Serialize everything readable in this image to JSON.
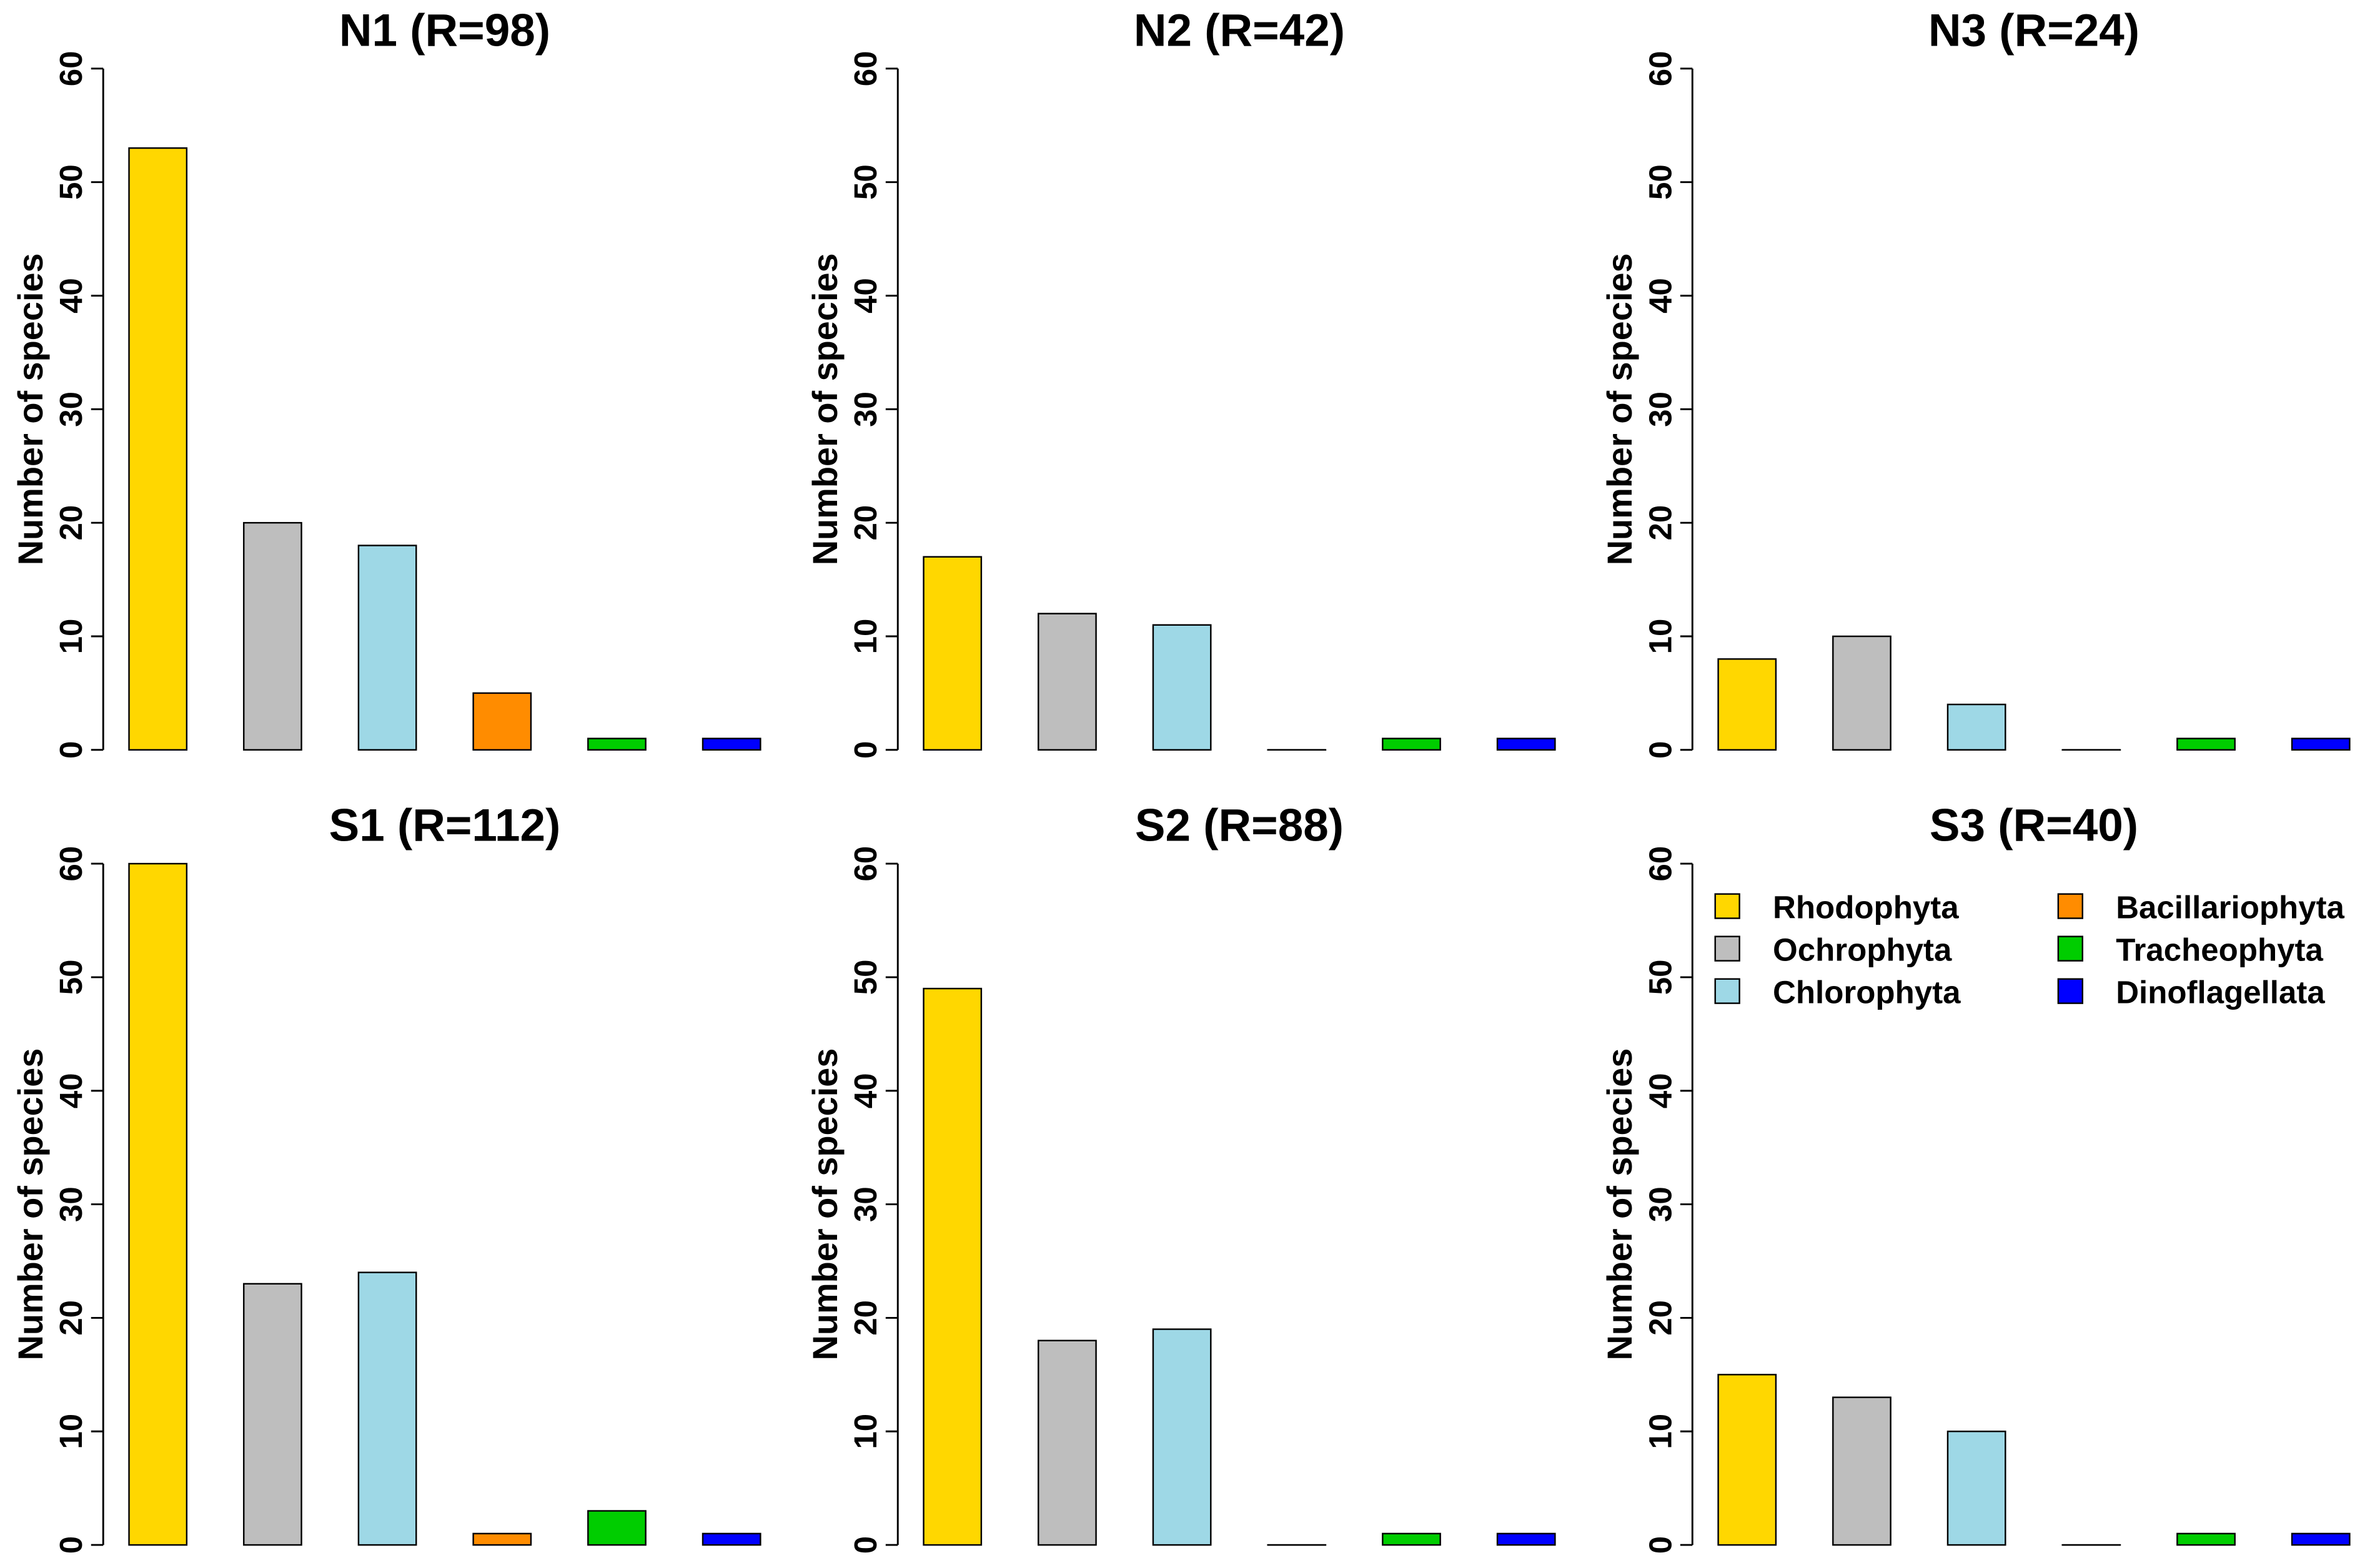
{
  "chart_data": {
    "type": "bar",
    "ylabel": "Number of species",
    "xlabel": "",
    "ylim": [
      0,
      60
    ],
    "yticks": [
      0,
      10,
      20,
      30,
      40,
      50,
      60
    ],
    "categories": [
      "Rhodophyta",
      "Ochrophyta",
      "Chlorophyta",
      "Bacillariophyta",
      "Tracheophyta",
      "Dinoflagellata"
    ],
    "colors": [
      "#FFD700",
      "#BEBEBE",
      "#9ED8E6",
      "#FF8C00",
      "#00CD00",
      "#0000FF"
    ],
    "legend": {
      "placement": "top-right of panel S3",
      "entries": [
        "Rhodophyta",
        "Ochrophyta",
        "Chlorophyta",
        "Bacillariophyta",
        "Tracheophyta",
        "Dinoflagellata"
      ]
    },
    "panels": [
      {
        "title": "N1 (R=98)",
        "values": [
          53,
          20,
          18,
          5,
          1,
          1
        ]
      },
      {
        "title": "N2 (R=42)",
        "values": [
          17,
          12,
          11,
          0,
          1,
          1
        ]
      },
      {
        "title": "N3 (R=24)",
        "values": [
          8,
          10,
          4,
          0,
          1,
          1
        ]
      },
      {
        "title": "S1 (R=112)",
        "values": [
          60,
          23,
          24,
          1,
          3,
          1
        ]
      },
      {
        "title": "S2 (R=88)",
        "values": [
          49,
          18,
          19,
          0,
          1,
          1
        ]
      },
      {
        "title": "S3 (R=40)",
        "values": [
          15,
          13,
          10,
          0,
          1,
          1
        ]
      }
    ]
  }
}
